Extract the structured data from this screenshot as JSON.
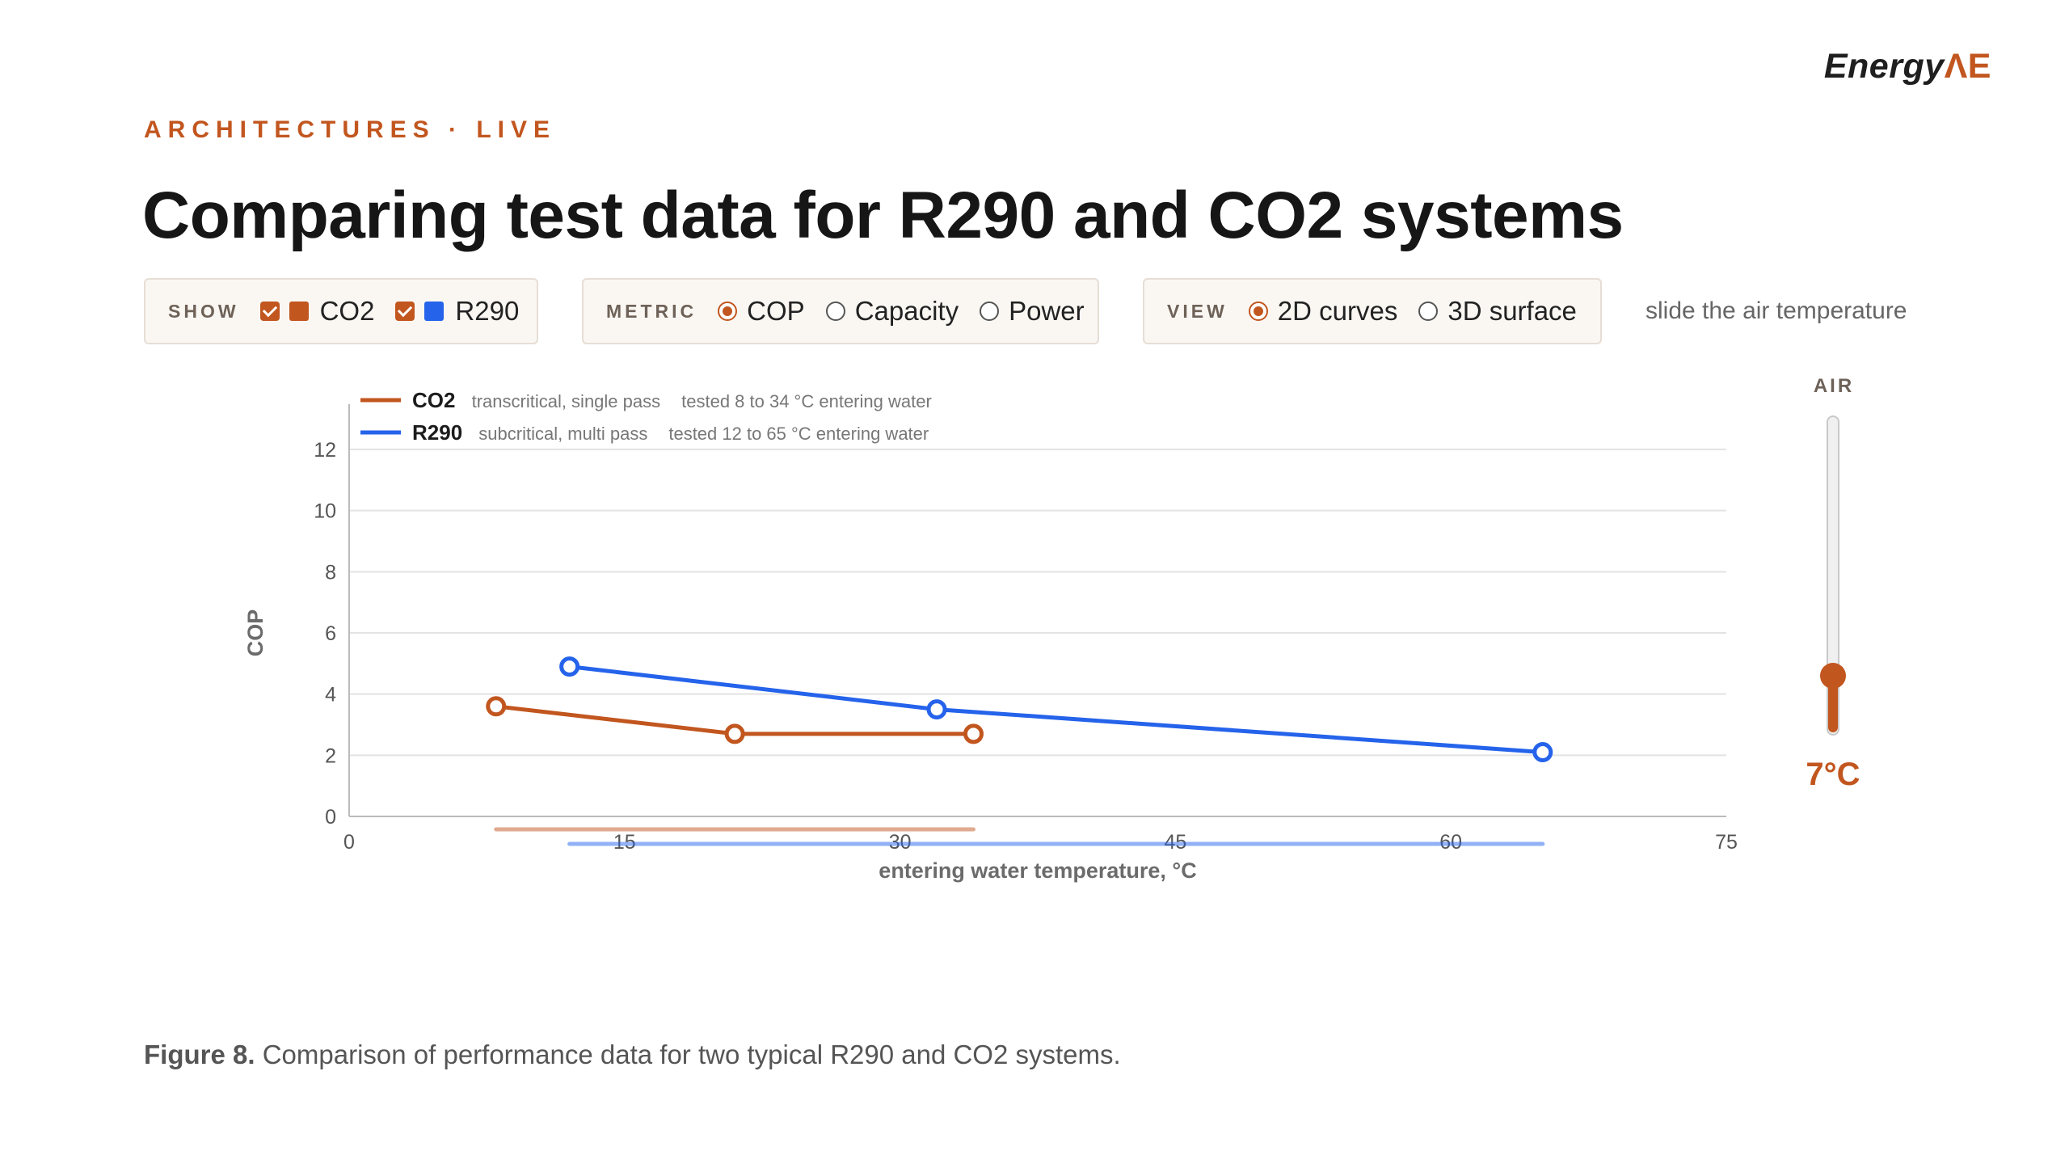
{
  "brand": {
    "name": "Energy",
    "mark": "ΛΕ"
  },
  "eyebrow": "ARCHITECTURES · LIVE",
  "title": "Comparing test data for R290 and CO2 systems",
  "controls": {
    "show": {
      "label": "SHOW",
      "options": [
        {
          "label": "CO2",
          "checked": true,
          "color": "#c2561f"
        },
        {
          "label": "R290",
          "checked": true,
          "color": "#2563eb"
        }
      ]
    },
    "metric": {
      "label": "METRIC",
      "options": [
        {
          "label": "COP",
          "selected": true
        },
        {
          "label": "Capacity",
          "selected": false
        },
        {
          "label": "Power",
          "selected": false
        }
      ]
    },
    "view": {
      "label": "VIEW",
      "options": [
        {
          "label": "2D curves",
          "selected": true
        },
        {
          "label": "3D surface",
          "selected": false
        }
      ]
    },
    "hint": "slide the air temperature"
  },
  "air_slider": {
    "label": "AIR",
    "value_text": "7°C",
    "level": 0.18
  },
  "chart_data": {
    "type": "line",
    "xlabel": "entering water temperature, °C",
    "ylabel": "COP",
    "xlim": [
      0,
      75
    ],
    "ylim": [
      0,
      12
    ],
    "xticks": [
      0,
      15,
      30,
      45,
      60,
      75
    ],
    "yticks": [
      0,
      2,
      4,
      6,
      8,
      10,
      12
    ],
    "grid": true,
    "legend_position": "top-left",
    "series": [
      {
        "name": "CO2",
        "color": "#c2561f",
        "desc": "transcritical, single pass",
        "range_text": "tested 8 to 34 °C entering water",
        "tested_range": [
          8,
          34
        ],
        "x": [
          8,
          21,
          34
        ],
        "y": [
          3.6,
          2.7,
          2.7
        ]
      },
      {
        "name": "R290",
        "color": "#2563eb",
        "desc": "subcritical, multi pass",
        "range_text": "tested 12 to 65 °C entering water",
        "tested_range": [
          12,
          65
        ],
        "x": [
          12,
          32,
          65
        ],
        "y": [
          4.9,
          3.5,
          2.1
        ]
      }
    ]
  },
  "caption": {
    "label": "Figure 8.",
    "text": "Comparison of performance data for two typical R290 and CO2 systems."
  }
}
